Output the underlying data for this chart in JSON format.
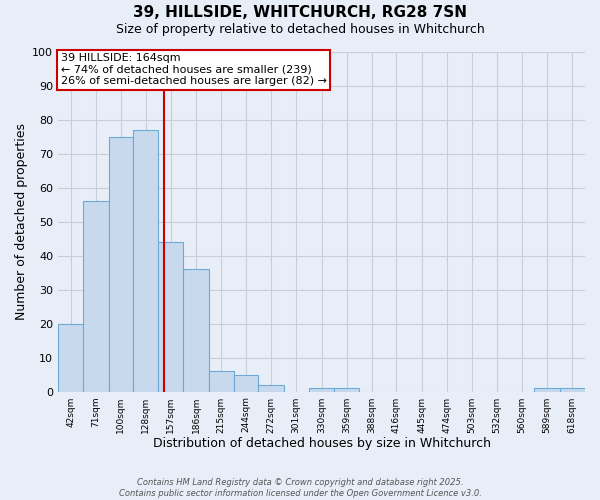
{
  "title": "39, HILLSIDE, WHITCHURCH, RG28 7SN",
  "subtitle": "Size of property relative to detached houses in Whitchurch",
  "xlabel": "Distribution of detached houses by size in Whitchurch",
  "ylabel": "Number of detached properties",
  "bin_labels": [
    "42sqm",
    "71sqm",
    "100sqm",
    "128sqm",
    "157sqm",
    "186sqm",
    "215sqm",
    "244sqm",
    "272sqm",
    "301sqm",
    "330sqm",
    "359sqm",
    "388sqm",
    "416sqm",
    "445sqm",
    "474sqm",
    "503sqm",
    "532sqm",
    "560sqm",
    "589sqm",
    "618sqm"
  ],
  "bin_edges": [
    42,
    71,
    100,
    128,
    157,
    186,
    215,
    244,
    272,
    301,
    330,
    359,
    388,
    416,
    445,
    474,
    503,
    532,
    560,
    589,
    618
  ],
  "bar_heights": [
    20,
    56,
    75,
    77,
    44,
    36,
    6,
    5,
    2,
    0,
    1,
    1,
    0,
    0,
    0,
    0,
    0,
    0,
    0,
    1,
    1
  ],
  "bar_color": "#c8d9ee",
  "bar_edge_color": "#6aaad4",
  "vline_x": 164,
  "vline_color": "#cc0000",
  "annotation_line1": "39 HILLSIDE: 164sqm",
  "annotation_line2": "← 74% of detached houses are smaller (239)",
  "annotation_line3": "26% of semi-detached houses are larger (82) →",
  "annotation_box_color": "#ffffff",
  "annotation_box_edge": "#cc0000",
  "ylim": [
    0,
    100
  ],
  "yticks": [
    0,
    10,
    20,
    30,
    40,
    50,
    60,
    70,
    80,
    90,
    100
  ],
  "grid_color": "#c8cdd8",
  "footnote_line1": "Contains HM Land Registry data © Crown copyright and database right 2025.",
  "footnote_line2": "Contains public sector information licensed under the Open Government Licence v3.0.",
  "background_color": "#e8eef8",
  "title_fontsize": 11,
  "subtitle_fontsize": 9
}
